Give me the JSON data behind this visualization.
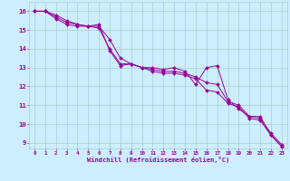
{
  "title": "",
  "xlabel": "Windchill (Refroidissement éolien,°C)",
  "ylabel": "",
  "background_color": "#cceeff",
  "line_color": "#990099",
  "grid_color": "#aacccc",
  "xlim": [
    -0.5,
    23.5
  ],
  "ylim": [
    8.7,
    16.5
  ],
  "yticks": [
    9,
    10,
    11,
    12,
    13,
    14,
    15,
    16
  ],
  "xticks": [
    0,
    1,
    2,
    3,
    4,
    5,
    6,
    7,
    8,
    9,
    10,
    11,
    12,
    13,
    14,
    15,
    16,
    17,
    18,
    19,
    20,
    21,
    22,
    23
  ],
  "series": [
    [
      16.0,
      16.0,
      15.8,
      15.5,
      15.3,
      15.2,
      15.3,
      13.9,
      13.1,
      13.2,
      13.0,
      13.0,
      12.9,
      13.0,
      12.8,
      12.1,
      13.0,
      13.1,
      11.3,
      10.8,
      10.4,
      10.4,
      9.4,
      8.8
    ],
    [
      16.0,
      16.0,
      15.7,
      15.4,
      15.3,
      15.2,
      15.2,
      14.5,
      13.5,
      13.2,
      13.0,
      12.9,
      12.8,
      12.8,
      12.7,
      12.5,
      12.2,
      12.1,
      11.2,
      11.0,
      10.4,
      10.3,
      9.5,
      8.9
    ],
    [
      16.0,
      16.0,
      15.6,
      15.3,
      15.2,
      15.2,
      15.1,
      14.0,
      13.2,
      13.2,
      13.0,
      12.8,
      12.7,
      12.7,
      12.6,
      12.4,
      11.8,
      11.7,
      11.1,
      10.9,
      10.3,
      10.2,
      9.4,
      8.8
    ]
  ],
  "xlabel_fontsize": 5.0,
  "xtick_fontsize": 4.2,
  "ytick_fontsize": 5.2,
  "marker_size": 2.0,
  "line_width": 0.7
}
